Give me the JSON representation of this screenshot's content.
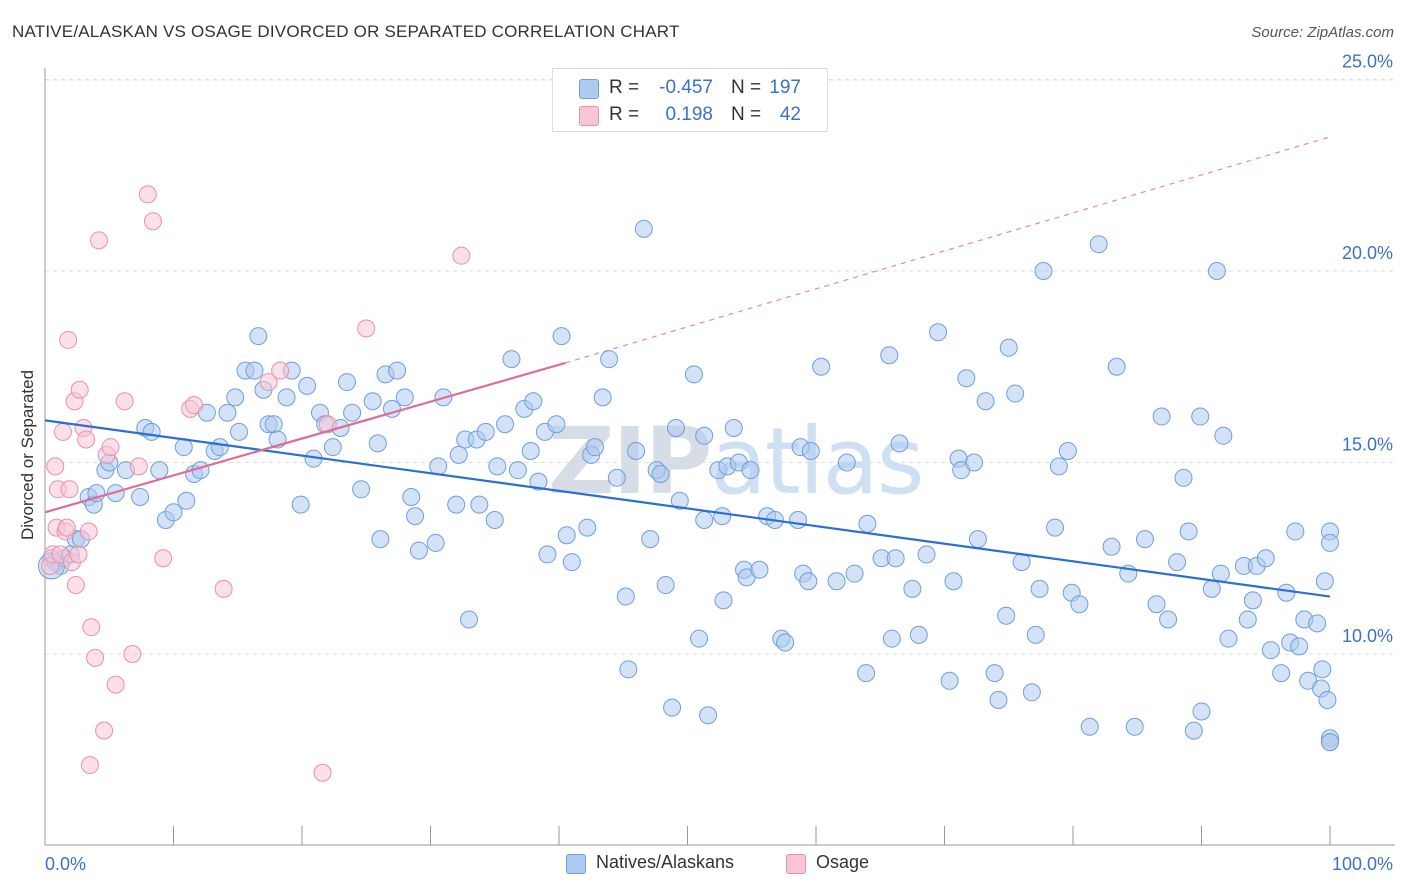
{
  "header": {
    "title": "NATIVE/ALASKAN VS OSAGE DIVORCED OR SEPARATED CORRELATION CHART",
    "source_prefix": "Source: ",
    "source_name": "ZipAtlas.com"
  },
  "watermark": {
    "zip": "ZIP",
    "atlas": "atlas"
  },
  "legend_top": {
    "rows": [
      {
        "r_label": "R =",
        "r_value": "-0.457",
        "n_label": "N =",
        "n_value": "197"
      },
      {
        "r_label": "R =",
        "r_value": "0.198",
        "n_label": "N =",
        "n_value": "42"
      }
    ]
  },
  "legend_bottom": {
    "items": [
      {
        "label": "Natives/Alaskans"
      },
      {
        "label": "Osage"
      }
    ]
  },
  "colors": {
    "blue_fill": "#aecbef",
    "blue_stroke": "#6f9fdc",
    "blue_line": "#2a6fd4",
    "pink_fill": "#f8c6d4",
    "pink_stroke": "#ea8fab",
    "pink_line": "#e06c95",
    "tick_label": "#3a72c8",
    "grid": "#dddddd"
  },
  "chart_data": {
    "type": "scatter",
    "title": "NATIVE/ALASKAN VS OSAGE DIVORCED OR SEPARATED CORRELATION CHART",
    "xlabel": "",
    "ylabel": "Divorced or Separated",
    "xlim": [
      0,
      100
    ],
    "ylim": [
      5,
      26
    ],
    "x_tick_labels": [
      {
        "value": 0,
        "label": "0.0%"
      },
      {
        "value": 100,
        "label": "100.0%"
      }
    ],
    "y_tick_labels": [
      {
        "value": 10,
        "label": "10.0%"
      },
      {
        "value": 15,
        "label": "15.0%"
      },
      {
        "value": 20,
        "label": "20.0%"
      },
      {
        "value": 25,
        "label": "25.0%"
      }
    ],
    "grid": true,
    "legend_position": "top-center",
    "series": [
      {
        "name": "Natives/Alaskans",
        "color": "blue",
        "r": -0.457,
        "n": 197,
        "trend": {
          "x0": 0,
          "y0": 16.1,
          "x1": 100,
          "y1": 11.5
        },
        "points": [
          [
            0.5,
            12.5
          ],
          [
            0.8,
            12.4
          ],
          [
            1.2,
            12.3
          ],
          [
            1.5,
            12.5
          ],
          [
            2.0,
            12.6
          ],
          [
            2.4,
            13.0
          ],
          [
            2.8,
            13.0
          ],
          [
            3.4,
            14.1
          ],
          [
            3.8,
            13.9
          ],
          [
            4.0,
            14.2
          ],
          [
            4.7,
            14.8
          ],
          [
            5.0,
            15.0
          ],
          [
            5.5,
            14.2
          ],
          [
            6.3,
            14.8
          ],
          [
            7.4,
            14.1
          ],
          [
            7.8,
            15.9
          ],
          [
            8.3,
            15.8
          ],
          [
            8.9,
            14.8
          ],
          [
            9.4,
            13.5
          ],
          [
            10.0,
            13.7
          ],
          [
            10.8,
            15.4
          ],
          [
            11.0,
            14.0
          ],
          [
            11.6,
            14.7
          ],
          [
            12.1,
            14.8
          ],
          [
            12.6,
            16.3
          ],
          [
            13.2,
            15.3
          ],
          [
            13.6,
            15.4
          ],
          [
            14.2,
            16.3
          ],
          [
            14.8,
            16.7
          ],
          [
            15.1,
            15.8
          ],
          [
            15.6,
            17.4
          ],
          [
            16.3,
            17.4
          ],
          [
            16.6,
            18.3
          ],
          [
            17.0,
            16.9
          ],
          [
            17.4,
            16.0
          ],
          [
            17.8,
            16.0
          ],
          [
            18.1,
            15.6
          ],
          [
            18.8,
            16.7
          ],
          [
            19.2,
            17.4
          ],
          [
            19.9,
            13.9
          ],
          [
            20.4,
            17.0
          ],
          [
            20.9,
            15.1
          ],
          [
            21.4,
            16.3
          ],
          [
            21.8,
            16.0
          ],
          [
            22.4,
            15.4
          ],
          [
            23.0,
            15.9
          ],
          [
            23.5,
            17.1
          ],
          [
            23.9,
            16.3
          ],
          [
            24.6,
            14.3
          ],
          [
            25.5,
            16.6
          ],
          [
            25.9,
            15.5
          ],
          [
            26.1,
            13.0
          ],
          [
            26.5,
            17.3
          ],
          [
            27.0,
            16.4
          ],
          [
            27.4,
            17.4
          ],
          [
            28.0,
            16.7
          ],
          [
            28.5,
            14.1
          ],
          [
            28.8,
            13.6
          ],
          [
            29.1,
            12.7
          ],
          [
            30.4,
            12.9
          ],
          [
            30.6,
            14.9
          ],
          [
            31.0,
            16.7
          ],
          [
            32.0,
            13.9
          ],
          [
            32.2,
            15.2
          ],
          [
            32.7,
            15.6
          ],
          [
            33.0,
            10.9
          ],
          [
            33.6,
            15.6
          ],
          [
            33.8,
            13.9
          ],
          [
            34.3,
            15.8
          ],
          [
            35.0,
            13.5
          ],
          [
            35.2,
            14.9
          ],
          [
            35.8,
            16.0
          ],
          [
            36.3,
            17.7
          ],
          [
            36.8,
            14.8
          ],
          [
            37.3,
            16.4
          ],
          [
            37.8,
            15.3
          ],
          [
            38.0,
            16.6
          ],
          [
            38.4,
            14.5
          ],
          [
            38.9,
            15.8
          ],
          [
            39.1,
            12.6
          ],
          [
            39.8,
            16.0
          ],
          [
            40.2,
            18.3
          ],
          [
            40.6,
            13.1
          ],
          [
            41.0,
            12.4
          ],
          [
            42.2,
            13.3
          ],
          [
            42.5,
            15.2
          ],
          [
            42.8,
            15.4
          ],
          [
            43.4,
            16.7
          ],
          [
            43.9,
            17.7
          ],
          [
            44.5,
            14.6
          ],
          [
            45.2,
            11.5
          ],
          [
            45.4,
            9.6
          ],
          [
            46.0,
            15.3
          ],
          [
            46.6,
            21.1
          ],
          [
            47.1,
            13.0
          ],
          [
            47.6,
            14.8
          ],
          [
            47.9,
            14.7
          ],
          [
            48.3,
            11.8
          ],
          [
            48.8,
            8.6
          ],
          [
            49.1,
            15.9
          ],
          [
            49.4,
            14.0
          ],
          [
            50.5,
            17.3
          ],
          [
            50.9,
            10.4
          ],
          [
            51.3,
            15.7
          ],
          [
            51.3,
            13.5
          ],
          [
            51.6,
            8.4
          ],
          [
            52.4,
            14.8
          ],
          [
            52.7,
            13.6
          ],
          [
            52.8,
            11.4
          ],
          [
            53.1,
            14.9
          ],
          [
            53.6,
            15.9
          ],
          [
            54.0,
            15.0
          ],
          [
            54.4,
            12.2
          ],
          [
            54.6,
            12.0
          ],
          [
            54.9,
            14.8
          ],
          [
            55.6,
            12.2
          ],
          [
            56.2,
            13.6
          ],
          [
            56.8,
            13.5
          ],
          [
            57.3,
            10.4
          ],
          [
            57.6,
            10.3
          ],
          [
            58.6,
            13.5
          ],
          [
            58.8,
            15.4
          ],
          [
            59.0,
            12.1
          ],
          [
            59.4,
            11.9
          ],
          [
            59.6,
            15.3
          ],
          [
            60.4,
            17.5
          ],
          [
            61.6,
            11.9
          ],
          [
            62.4,
            15.0
          ],
          [
            63.0,
            12.1
          ],
          [
            63.9,
            9.5
          ],
          [
            64.0,
            13.4
          ],
          [
            65.1,
            12.5
          ],
          [
            65.7,
            17.8
          ],
          [
            65.9,
            10.4
          ],
          [
            66.2,
            12.5
          ],
          [
            66.5,
            15.5
          ],
          [
            67.5,
            11.7
          ],
          [
            68.0,
            10.5
          ],
          [
            68.6,
            12.6
          ],
          [
            69.5,
            18.4
          ],
          [
            70.4,
            9.3
          ],
          [
            70.7,
            11.9
          ],
          [
            71.1,
            15.1
          ],
          [
            71.3,
            14.8
          ],
          [
            71.7,
            17.2
          ],
          [
            72.3,
            15.0
          ],
          [
            72.6,
            13.0
          ],
          [
            73.2,
            16.6
          ],
          [
            73.9,
            9.5
          ],
          [
            74.2,
            8.8
          ],
          [
            74.8,
            11.0
          ],
          [
            75.0,
            18.0
          ],
          [
            75.5,
            16.8
          ],
          [
            76.0,
            12.4
          ],
          [
            76.8,
            9.0
          ],
          [
            77.1,
            10.5
          ],
          [
            77.4,
            11.7
          ],
          [
            77.7,
            20.0
          ],
          [
            78.6,
            13.3
          ],
          [
            78.9,
            14.9
          ],
          [
            79.6,
            15.3
          ],
          [
            79.9,
            11.6
          ],
          [
            80.5,
            11.3
          ],
          [
            81.3,
            8.1
          ],
          [
            82.0,
            20.7
          ],
          [
            83.0,
            12.8
          ],
          [
            83.4,
            17.5
          ],
          [
            84.3,
            12.1
          ],
          [
            84.8,
            8.1
          ],
          [
            85.6,
            13.0
          ],
          [
            86.5,
            11.3
          ],
          [
            86.9,
            16.2
          ],
          [
            87.4,
            10.9
          ],
          [
            88.1,
            12.4
          ],
          [
            88.6,
            14.6
          ],
          [
            89.0,
            13.2
          ],
          [
            89.4,
            8.0
          ],
          [
            89.9,
            16.2
          ],
          [
            90.0,
            8.5
          ],
          [
            90.8,
            11.7
          ],
          [
            91.2,
            20.0
          ],
          [
            91.5,
            12.1
          ],
          [
            91.7,
            15.7
          ],
          [
            92.1,
            10.4
          ],
          [
            93.3,
            12.3
          ],
          [
            93.6,
            10.9
          ],
          [
            94.0,
            11.4
          ],
          [
            94.3,
            12.3
          ],
          [
            95.0,
            12.5
          ],
          [
            95.4,
            10.1
          ],
          [
            96.2,
            9.5
          ],
          [
            96.6,
            11.6
          ],
          [
            96.9,
            10.3
          ],
          [
            97.3,
            13.2
          ],
          [
            97.6,
            10.2
          ],
          [
            98.0,
            10.9
          ],
          [
            98.3,
            9.3
          ],
          [
            99.0,
            10.8
          ],
          [
            99.4,
            9.6
          ],
          [
            99.6,
            11.9
          ],
          [
            100.0,
            7.8
          ],
          [
            100.0,
            7.7
          ],
          [
            100.0,
            13.2
          ],
          [
            100.0,
            7.7
          ],
          [
            99.3,
            9.1
          ],
          [
            100.0,
            12.9
          ],
          [
            99.8,
            8.8
          ]
        ]
      },
      {
        "name": "Osage",
        "color": "pink",
        "r": 0.198,
        "n": 42,
        "trend": {
          "x0": 0,
          "y0": 13.7,
          "x1": 40.5,
          "y1": 17.6
        },
        "trend_extension": {
          "x0": 40.5,
          "y0": 17.6,
          "x1": 100,
          "y1": 23.5
        },
        "points": [
          [
            0.4,
            12.3
          ],
          [
            0.6,
            12.6
          ],
          [
            0.8,
            14.9
          ],
          [
            0.9,
            13.3
          ],
          [
            1.0,
            14.3
          ],
          [
            1.2,
            12.6
          ],
          [
            1.4,
            15.8
          ],
          [
            1.6,
            13.2
          ],
          [
            1.8,
            18.2
          ],
          [
            1.9,
            14.3
          ],
          [
            2.1,
            12.4
          ],
          [
            2.3,
            16.6
          ],
          [
            2.4,
            11.8
          ],
          [
            2.6,
            12.6
          ],
          [
            2.7,
            16.9
          ],
          [
            3.0,
            15.9
          ],
          [
            3.2,
            15.6
          ],
          [
            3.4,
            13.2
          ],
          [
            3.6,
            10.7
          ],
          [
            3.9,
            9.9
          ],
          [
            4.2,
            20.8
          ],
          [
            4.6,
            8.0
          ],
          [
            4.8,
            15.2
          ],
          [
            5.1,
            15.4
          ],
          [
            5.5,
            9.2
          ],
          [
            6.2,
            16.6
          ],
          [
            6.8,
            10.0
          ],
          [
            7.3,
            14.9
          ],
          [
            8.0,
            22.0
          ],
          [
            8.4,
            21.3
          ],
          [
            9.2,
            12.5
          ],
          [
            11.3,
            16.4
          ],
          [
            11.6,
            16.5
          ],
          [
            13.9,
            11.7
          ],
          [
            17.4,
            17.1
          ],
          [
            18.3,
            17.4
          ],
          [
            21.6,
            6.9
          ],
          [
            22.0,
            16.0
          ],
          [
            25.0,
            18.5
          ],
          [
            32.4,
            20.4
          ],
          [
            3.5,
            7.1
          ],
          [
            1.7,
            13.3
          ]
        ]
      }
    ]
  }
}
